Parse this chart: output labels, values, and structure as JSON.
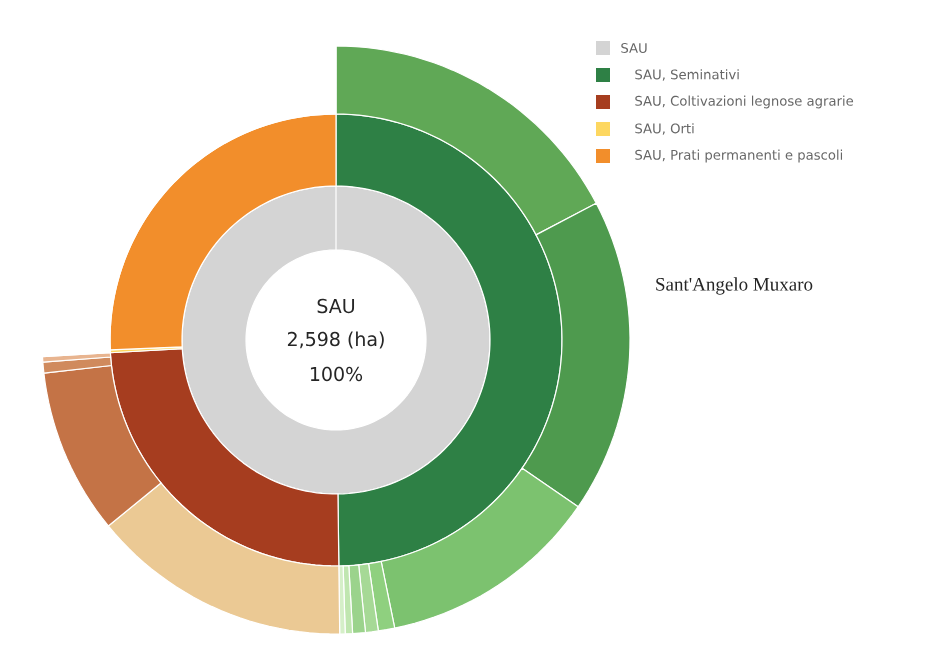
{
  "chart_data": [
    {
      "type": "donut",
      "title": "Sant'Angelo Muxaro",
      "categories": [
        "SAU",
        "SAU, Seminativi",
        "SAU, Coltivazioni legnose agrarie",
        "SAU, Orti",
        "SAU, Prati permanenti e pascoli"
      ],
      "colors": [
        "#d4d4d4",
        "#2e8045",
        "#a63d1f",
        "#fdd760",
        "#f28e2b"
      ],
      "legend": "top right",
      "annotations": [
        "SAU",
        "2,598 (ha)",
        "100%"
      ],
      "series": [
        {
          "values": [
            100,
            null,
            null,
            null,
            null
          ]
        },
        {
          "values": [
            null,
            49.8,
            24.3,
            0.2,
            25.7
          ]
        }
      ]
    },
    {
      "type": "donut",
      "categories": [
        null,
        null,
        null,
        null,
        null,
        null,
        null,
        null,
        null,
        null,
        null,
        null,
        null
      ],
      "values": [
        17.3,
        17.3,
        12.2,
        0.9,
        0.7,
        0.7,
        0.4,
        0.3,
        14.3,
        9.1,
        0.6,
        0.3,
        25.9
      ],
      "colors": [
        "#60a856",
        "#4e9a4e",
        "#7cc26f",
        "#8fd07f",
        "#a6d996",
        "#9bd38c",
        "#c0e6b0",
        "#d5efc8",
        "#ebc994",
        "#c47346",
        "#d08a5d",
        "#e8b48f",
        "#ffffff"
      ]
    }
  ]
}
